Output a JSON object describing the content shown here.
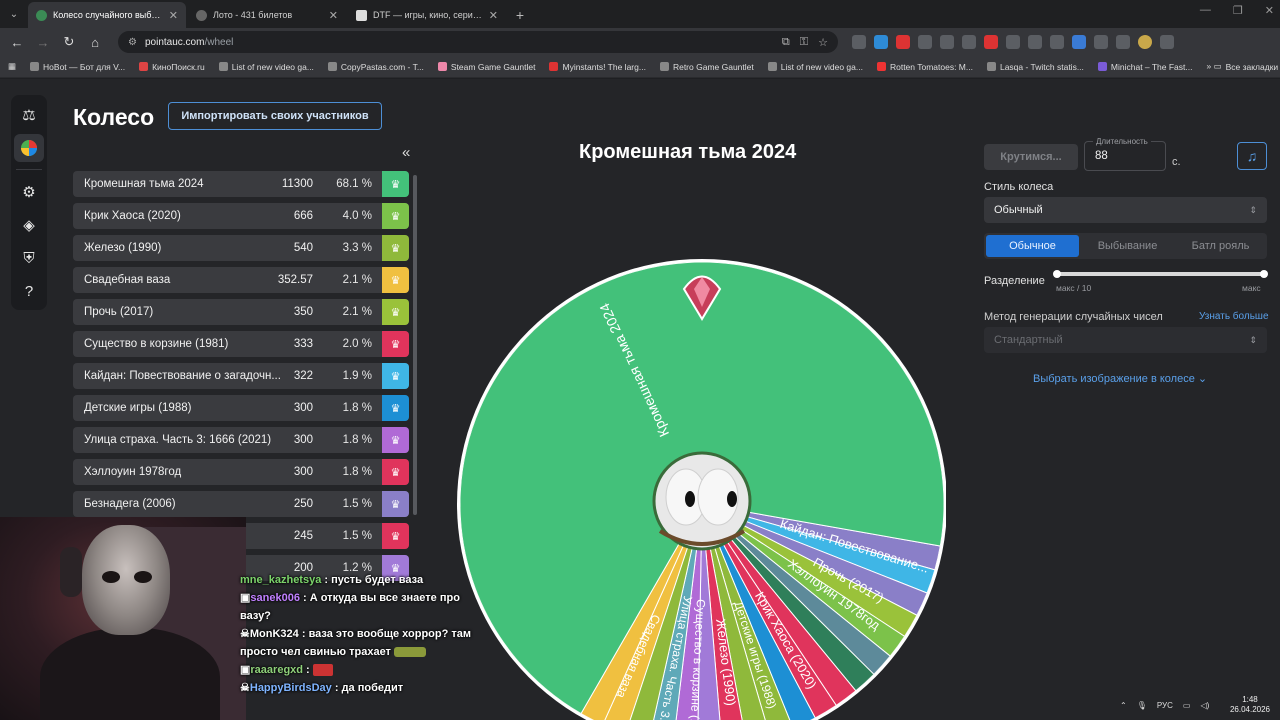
{
  "browser": {
    "tabs": [
      {
        "title": "Колесо случайного выбора – ",
        "active": true
      },
      {
        "title": "Лото - 431 билетов",
        "active": false
      },
      {
        "title": "DTF — игры, кино, сериалы, р",
        "active": false
      }
    ],
    "url_host": "pointauc.com",
    "url_path": "/wheel",
    "bookmarks": [
      "HoBot — Бот для V...",
      "КиноПоиск.ru",
      "List of new video ga...",
      "CopyPastas.com - T...",
      "Steam Game Gauntlet",
      "Myinstants! The larg...",
      "Retro Game Gauntlet",
      "List of new video ga...",
      "Rotten Tomatoes: M...",
      "Lasqa - Twitch statis...",
      "Minichat – The Fast..."
    ],
    "bookmarks_all": "Все закладки"
  },
  "page": {
    "title": "Колесо",
    "import_button": "Импортировать своих участников",
    "collapse_glyph": "«"
  },
  "participants": [
    {
      "name": "Кромешная тьма 2024",
      "amount": "11300",
      "percent": "68.1 %",
      "color": "#43c17a"
    },
    {
      "name": "Крик Хаоса (2020)",
      "amount": "666",
      "percent": "4.0 %",
      "color": "#7cc24a"
    },
    {
      "name": "Железо (1990)",
      "amount": "540",
      "percent": "3.3 %",
      "color": "#8fb93b"
    },
    {
      "name": "Свадебная ваза",
      "amount": "352.57",
      "percent": "2.1 %",
      "color": "#f0c040"
    },
    {
      "name": "Прочь (2017)",
      "amount": "350",
      "percent": "2.1 %",
      "color": "#9ac23a"
    },
    {
      "name": "Существо в корзине (1981)",
      "amount": "333",
      "percent": "2.0 %",
      "color": "#e0345c"
    },
    {
      "name": "Кайдан: Повествование о загадочн...",
      "amount": "322",
      "percent": "1.9 %",
      "color": "#3fb6e6"
    },
    {
      "name": "Детские игры (1988)",
      "amount": "300",
      "percent": "1.8 %",
      "color": "#1d8fd4"
    },
    {
      "name": "Улица страха. Часть 3: 1666 (2021)",
      "amount": "300",
      "percent": "1.8 %",
      "color": "#b06ad6"
    },
    {
      "name": "Хэллоуин 1978год",
      "amount": "300",
      "percent": "1.8 %",
      "color": "#e0345c"
    },
    {
      "name": "Безнадега (2006)",
      "amount": "250",
      "percent": "1.5 %",
      "color": "#8a7fc8"
    },
    {
      "name": "",
      "amount": "245",
      "percent": "1.5 %",
      "color": "#e0345c"
    },
    {
      "name": "",
      "amount": "200",
      "percent": "1.2 %",
      "color": "#a17ad8"
    }
  ],
  "wheel": {
    "title": "Кромешная тьма 2024",
    "labels": [
      "Кромешная тьма 2024",
      "Кайдан: Повествование...",
      "Прочь (2017)",
      "Хэллоуин 1978год",
      "Крик Хаоса (2020)",
      "Детские игры (1988)",
      "Железо (1990)",
      "Существо в корзине (...",
      "Улица страха. Часть 3...",
      "Свадебная ваза"
    ]
  },
  "settings": {
    "spin_button": "Крутимся...",
    "duration_label": "Длительность",
    "duration_value": "88",
    "duration_unit": "с.",
    "style_label": "Стиль колеса",
    "style_value": "Обычный",
    "modes": [
      "Обычное",
      "Выбывание",
      "Батл рояль"
    ],
    "split_label": "Разделение",
    "split_min": "макс / 10",
    "split_max": "макс",
    "rng_label": "Метод генерации случайных чисел",
    "rng_learn_more": "Узнать больше",
    "rng_value": "Стандартный",
    "image_link": "Выбрать изображение в колесе"
  },
  "chat": [
    {
      "user": "mne_kazhetsya",
      "text": "пусть будет ваза"
    },
    {
      "user": "sanek006",
      "text": "А откуда вы все знаете про вазу?"
    },
    {
      "user": "MonK324",
      "text": "ваза это вообще хоррор? там просто чел свинью трахает"
    },
    {
      "user": "raaaregxd",
      "text": ""
    },
    {
      "user": "HappyBirdsDay",
      "text": "да победит"
    }
  ],
  "system": {
    "lang": "РУС",
    "time": "1:48",
    "date": "26.04.2026"
  }
}
